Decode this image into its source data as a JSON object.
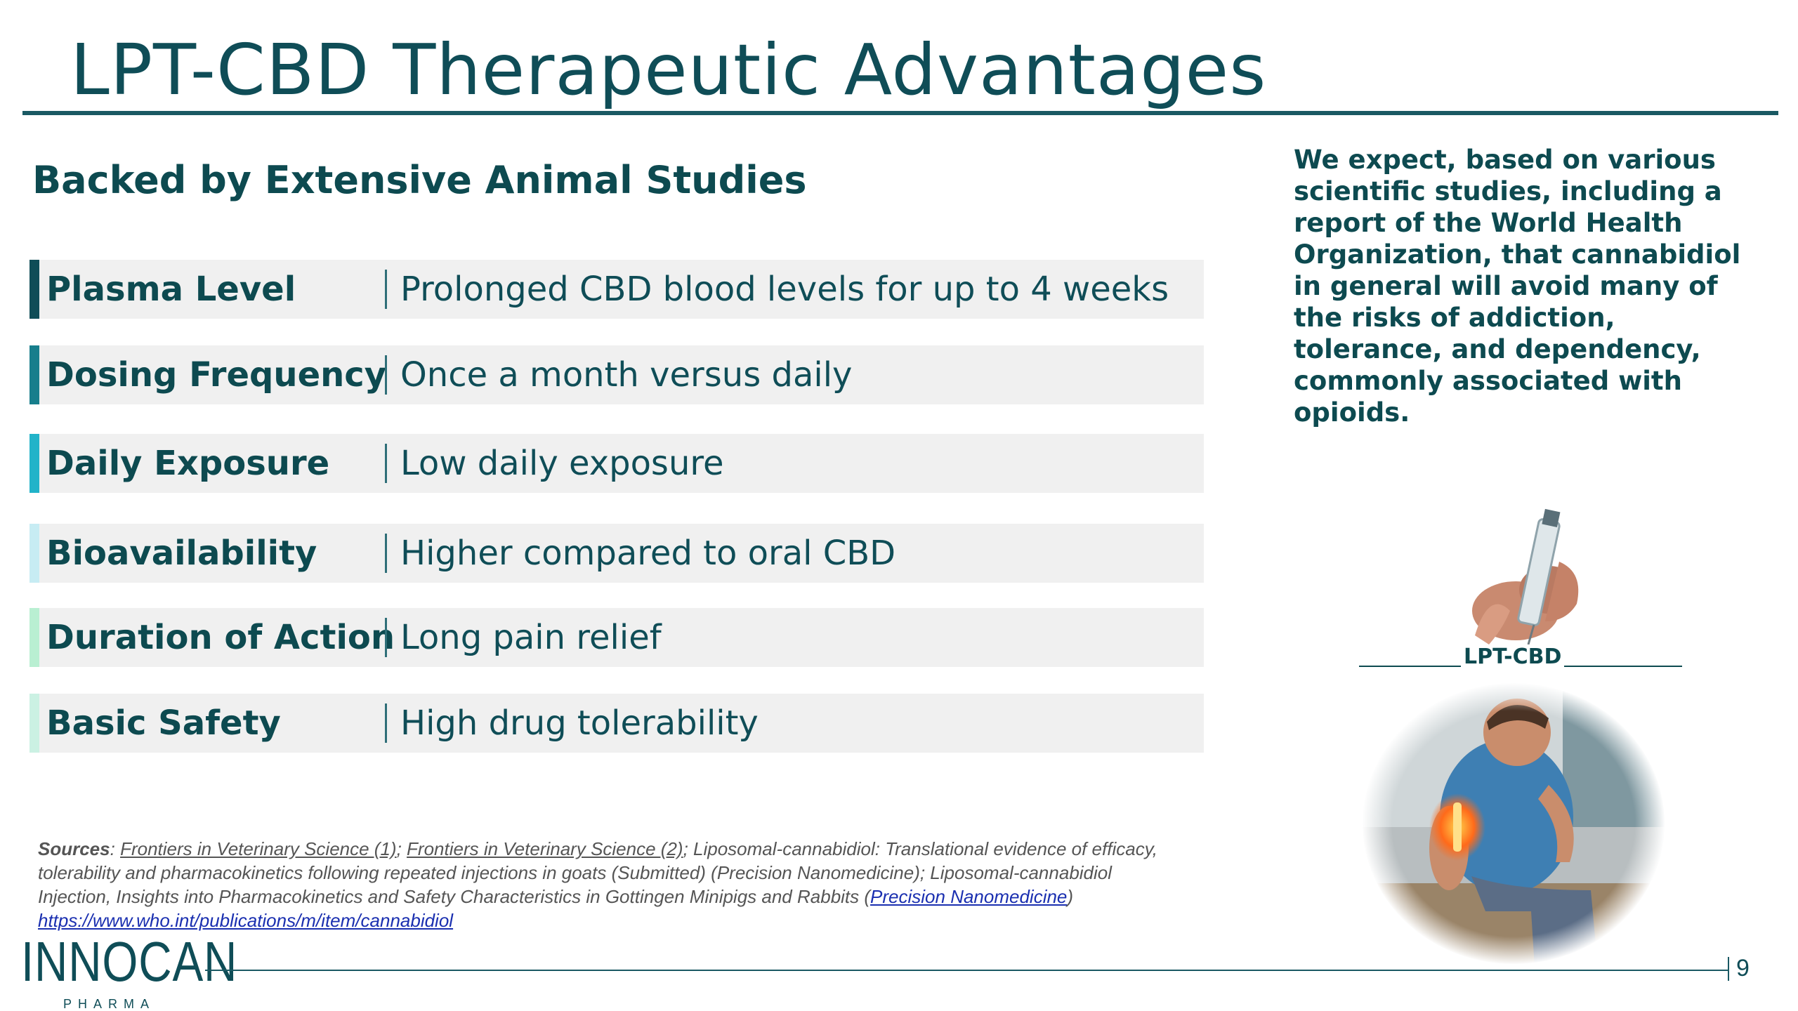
{
  "slide": {
    "title": "LPT-CBD Therapeutic Advantages",
    "subtitle": "Backed by Extensive Animal Studies",
    "rows": [
      {
        "label": "Plasma Level",
        "value": "Prolonged CBD blood levels for up to 4 weeks",
        "accent": "#0f4d57"
      },
      {
        "label": "Dosing Frequency",
        "value": "Once a month versus daily",
        "accent": "#177e8c"
      },
      {
        "label": "Daily Exposure",
        "value": "Low daily exposure",
        "accent": "#22b3c9"
      },
      {
        "label": "Bioavailability",
        "value": "Higher compared to oral CBD",
        "accent": "#c7ecf3"
      },
      {
        "label": "Duration of Action",
        "value": "Long pain relief",
        "accent": "#b9efd2"
      },
      {
        "label": "Basic Safety",
        "value": "High drug tolerability",
        "accent": "#cbf1e3"
      }
    ],
    "side_text": "We expect, based on various scientific studies, including a report of the World Health Organization, that cannabidiol in general will avoid many of the risks of addiction, tolerance, and dependency, commonly associated with opioids.",
    "image_caption": "LPT-CBD",
    "sources": {
      "label": "Sources",
      "colon": ": ",
      "link1": "Frontiers in Veterinary Science (1)",
      "sep1": "; ",
      "link2": "Frontiers in Veterinary Science (2)",
      "text1": "; Liposomal-cannabidiol: Translational evidence of efficacy, tolerability and pharmacokinetics following repeated injections in goats (Submitted) (Precision Nanomedicine); Liposomal-cannabidiol Injection, Insights into Pharmacokinetics and Safety Characteristics in Gottingen Minipigs and Rabbits (",
      "link3": "Precision Nanomedicine",
      "text2": ") ",
      "link4": "https://www.who.int/publications/m/item/cannabidiol"
    },
    "logo": {
      "name": "INNOCAN",
      "sub": "PHARMA"
    },
    "page_number": "9"
  },
  "colors": {
    "primary": "#0f4d57",
    "row_bg": "#f0f0f0",
    "link": "#1a2fb0"
  }
}
